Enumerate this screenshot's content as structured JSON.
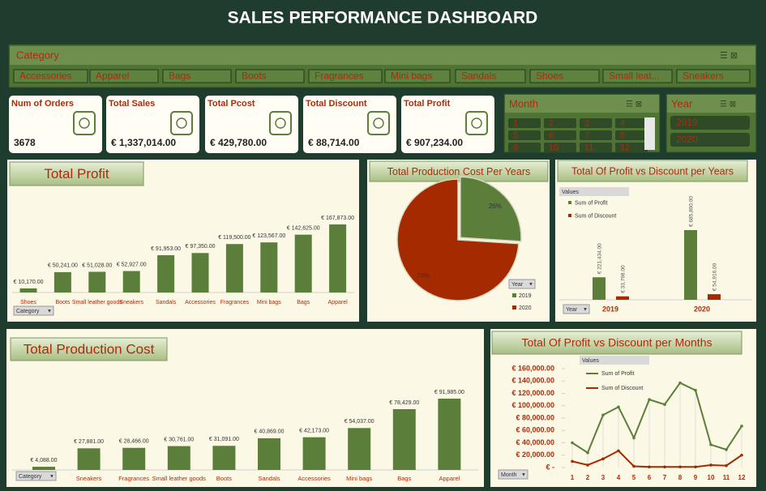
{
  "header": {
    "title": "SALES PERFORMANCE DASHBOARD"
  },
  "category_slicer": {
    "title": "Category",
    "items": [
      "Accessories",
      "Apparel",
      "Bags",
      "Boots",
      "Fragrances",
      "Mini bags",
      "Sandals",
      "Shoes",
      "Small leat...",
      "Sneakers"
    ]
  },
  "kpis": [
    {
      "label": "Num of Orders",
      "value": "3678"
    },
    {
      "label": "Total Sales",
      "value": "€ 1,337,014.00"
    },
    {
      "label": "Total Pcost",
      "value": "€ 429,780.00"
    },
    {
      "label": "Total Discount",
      "value": "€ 88,714.00"
    },
    {
      "label": "Total Profit",
      "value": "€ 907,234.00"
    }
  ],
  "month_slicer": {
    "title": "Month",
    "items": [
      "1",
      "2",
      "3",
      "4",
      "5",
      "6",
      "7",
      "8",
      "9",
      "10",
      "11",
      "12"
    ]
  },
  "year_slicer": {
    "title": "Year",
    "items": [
      "2019",
      "2020"
    ]
  },
  "chart_data": [
    {
      "type": "bar",
      "title": "Total Profit",
      "filter_button": "Category",
      "color": "#5b7f3a",
      "categories": [
        "Shoes",
        "Boots",
        "Small leather goods",
        "Sneakers",
        "Sandals",
        "Accessories",
        "Fragrances",
        "Mini bags",
        "Bags",
        "Apparel"
      ],
      "values": [
        10170,
        50241,
        51028,
        52927,
        91953,
        97350,
        119500,
        123567,
        142625,
        167873
      ],
      "value_labels": [
        "€ 10,170.00",
        "€ 50,241.00",
        "€ 51,028.00",
        "€ 52,927.00",
        "€ 91,953.00",
        "€ 97,350.00",
        "€ 119,500.00",
        "€ 123,567.00",
        "€ 142,625.00",
        "€ 167,873.00"
      ]
    },
    {
      "type": "pie",
      "title": "Total Production Cost Per Years",
      "legend_title": "Year",
      "categories": [
        "2019",
        "2020"
      ],
      "values": [
        26,
        74
      ],
      "value_labels": [
        "26%",
        "74%"
      ],
      "colors": [
        "#5b7f3a",
        "#a52a00"
      ]
    },
    {
      "type": "groupbar",
      "title": "Total Of Profit vs Discount per Years",
      "legend_title": "Values",
      "filter_button": "Year",
      "categories": [
        "2019",
        "2020"
      ],
      "series": [
        {
          "name": "Sum of Profit",
          "color": "#5b7f3a",
          "values": [
            221434,
            685800
          ],
          "value_labels": [
            "€ 221,434.00",
            "€ 685,800.00"
          ]
        },
        {
          "name": "Sum of Discount",
          "color": "#a52a00",
          "values": [
            33798,
            54916
          ],
          "value_labels": [
            "€ 33,798.00",
            "€ 54,916.00"
          ]
        }
      ]
    },
    {
      "type": "bar",
      "title": "Total Production Cost",
      "filter_button": "Category",
      "color": "#5b7f3a",
      "categories": [
        null,
        "Sneakers",
        "Fragrances",
        "Small leather goods",
        "Boots",
        "Sandals",
        "Accessories",
        "Mini bags",
        "Bags",
        "Apparel"
      ],
      "values": [
        4088,
        27881,
        28466,
        30761,
        31091,
        40869,
        42173,
        54037,
        78429,
        91985
      ],
      "value_labels": [
        "€ 4,088.00",
        "€ 27,881.00",
        "€ 28,466.00",
        "€ 30,761.00",
        "€ 31,091.00",
        "€ 40,869.00",
        "€ 42,173.00",
        "€ 54,037.00",
        "€ 78,429.00",
        "€ 91,985.00"
      ]
    },
    {
      "type": "line",
      "title": "Total Of Profit vs Discount per Months",
      "legend_title": "Values",
      "filter_button": "Month",
      "categories": [
        "1",
        "2",
        "3",
        "4",
        "5",
        "6",
        "7",
        "8",
        "9",
        "10",
        "11",
        "12"
      ],
      "ylim": [
        0,
        160000
      ],
      "yticks": [
        {
          "value": 0,
          "label": "€ -"
        },
        {
          "value": 20000,
          "label": "€ 20,000.00"
        },
        {
          "value": 40000,
          "label": "€ 40,000.00"
        },
        {
          "value": 60000,
          "label": "€ 60,000.00"
        },
        {
          "value": 80000,
          "label": "€ 80,000.00"
        },
        {
          "value": 100000,
          "label": "€ 100,000.00"
        },
        {
          "value": 120000,
          "label": "€ 120,000.00"
        },
        {
          "value": 140000,
          "label": "€ 140,000.00"
        },
        {
          "value": 160000,
          "label": "€ 160,000.00"
        }
      ],
      "series": [
        {
          "name": "Sum of Profit",
          "color": "#5b7f3a",
          "values": [
            40000,
            24000,
            85000,
            98000,
            48000,
            110000,
            102000,
            137000,
            125000,
            37000,
            29000,
            67000
          ]
        },
        {
          "name": "Sum of Discount",
          "color": "#a52a00",
          "values": [
            10000,
            4000,
            14000,
            27000,
            2000,
            1000,
            1000,
            1000,
            1000,
            4000,
            3000,
            20000
          ]
        }
      ]
    }
  ]
}
